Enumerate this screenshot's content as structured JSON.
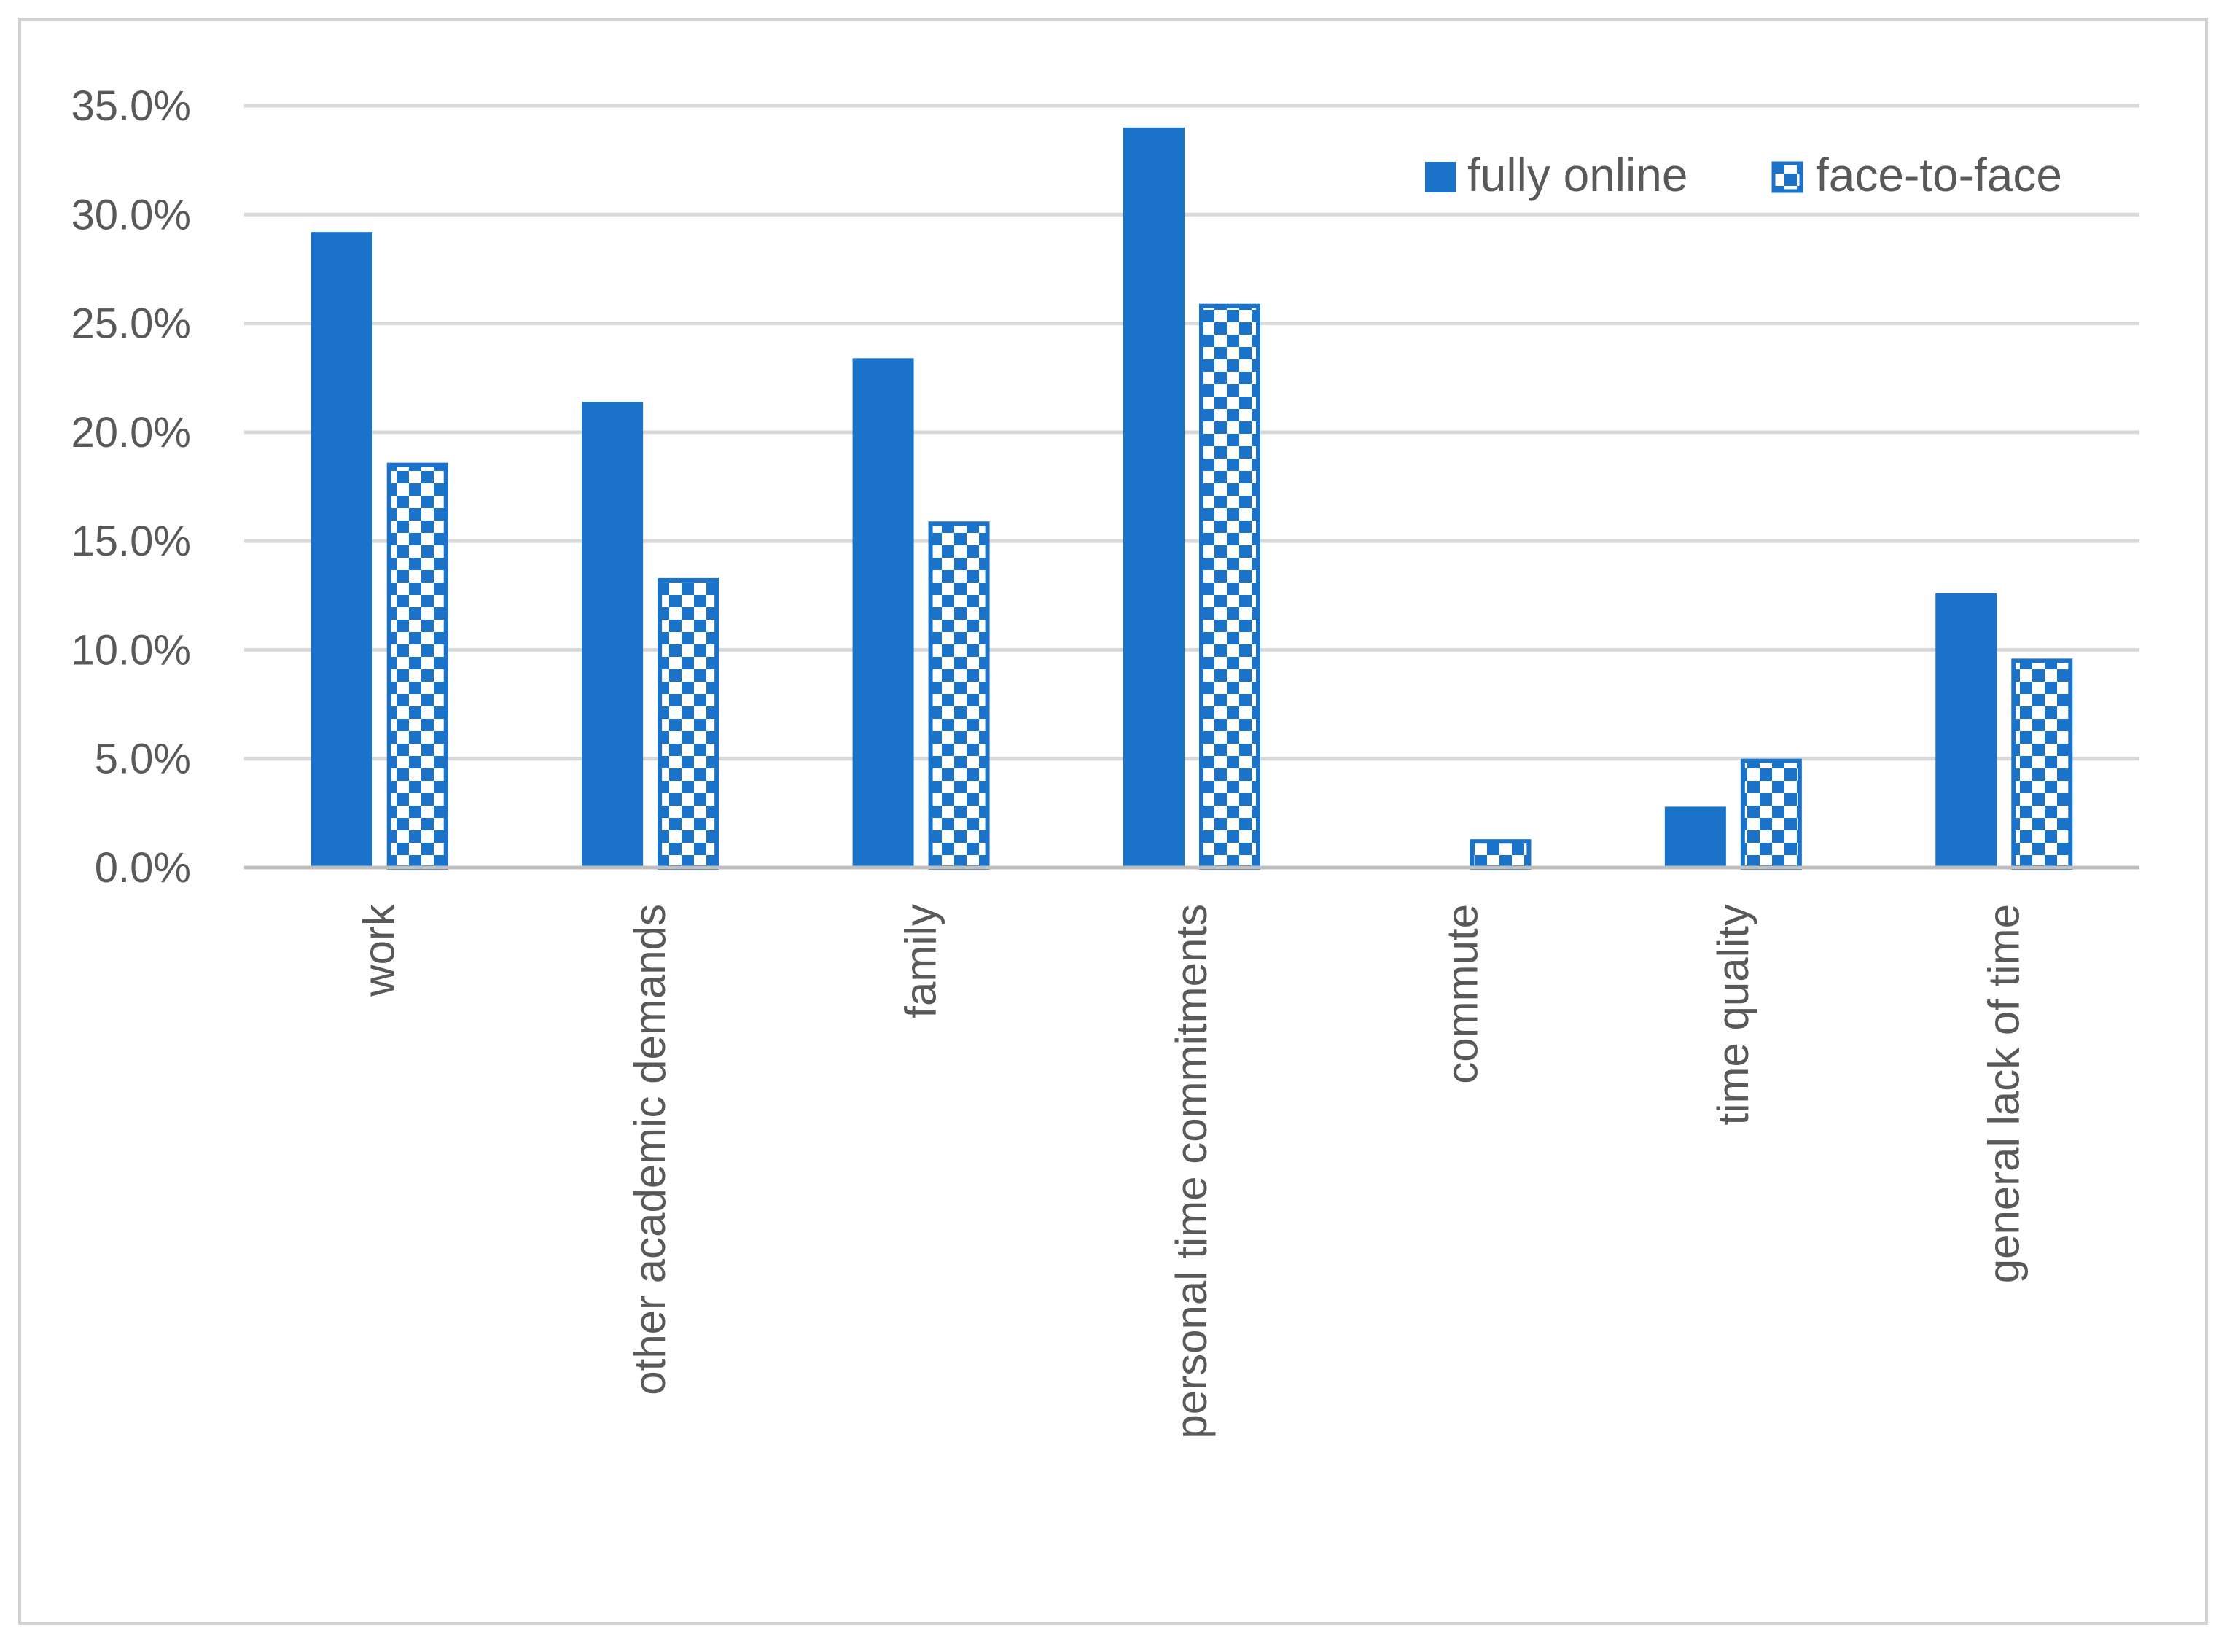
{
  "chart_data": {
    "type": "bar",
    "title": "",
    "xlabel": "",
    "ylabel": "",
    "categories": [
      "work",
      "other academic demands",
      "family",
      "personal time commitments",
      "commute",
      "time quality",
      "general lack of time"
    ],
    "series": [
      {
        "name": "fully online",
        "values": [
          29.2,
          21.4,
          23.4,
          34.0,
          0.0,
          2.8,
          12.6
        ],
        "style": "solid"
      },
      {
        "name": "face-to-face",
        "values": [
          18.6,
          13.3,
          15.9,
          25.9,
          1.3,
          5.0,
          9.6
        ],
        "style": "checkered"
      }
    ],
    "y_ticks": [
      "0.0%",
      "5.0%",
      "10.0%",
      "15.0%",
      "20.0%",
      "25.0%",
      "30.0%",
      "35.0%"
    ],
    "ylim": [
      0,
      35
    ],
    "y_step": 5,
    "grid": true,
    "legend_position": "top-right",
    "colors": {
      "bar": "#1a73c8",
      "grid": "#d9d9d9",
      "axis": "#bfbfbf",
      "text": "#595959",
      "border": "#d0d0d0"
    }
  }
}
